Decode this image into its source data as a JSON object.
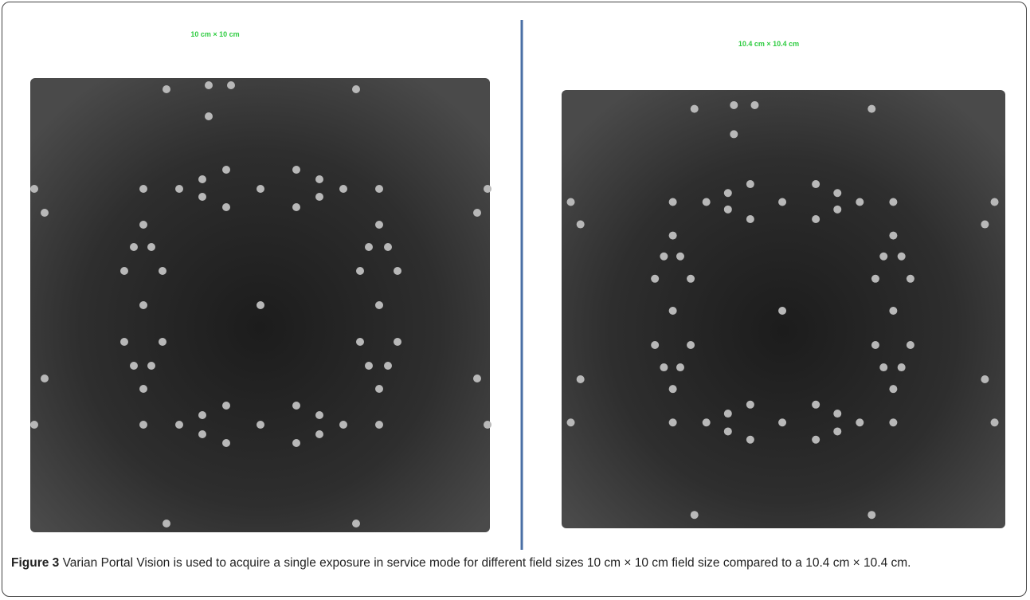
{
  "panels": [
    {
      "label": "10 cm × 10 cm"
    },
    {
      "label": "10.4 cm × 10.4 cm"
    }
  ],
  "caption": {
    "label": "Figure 3",
    "text": "Varian Portal Vision is used to acquire a single exposure in service mode for different field sizes 10 cm × 10 cm field size compared to a 10.4 cm × 10.4 cm."
  }
}
